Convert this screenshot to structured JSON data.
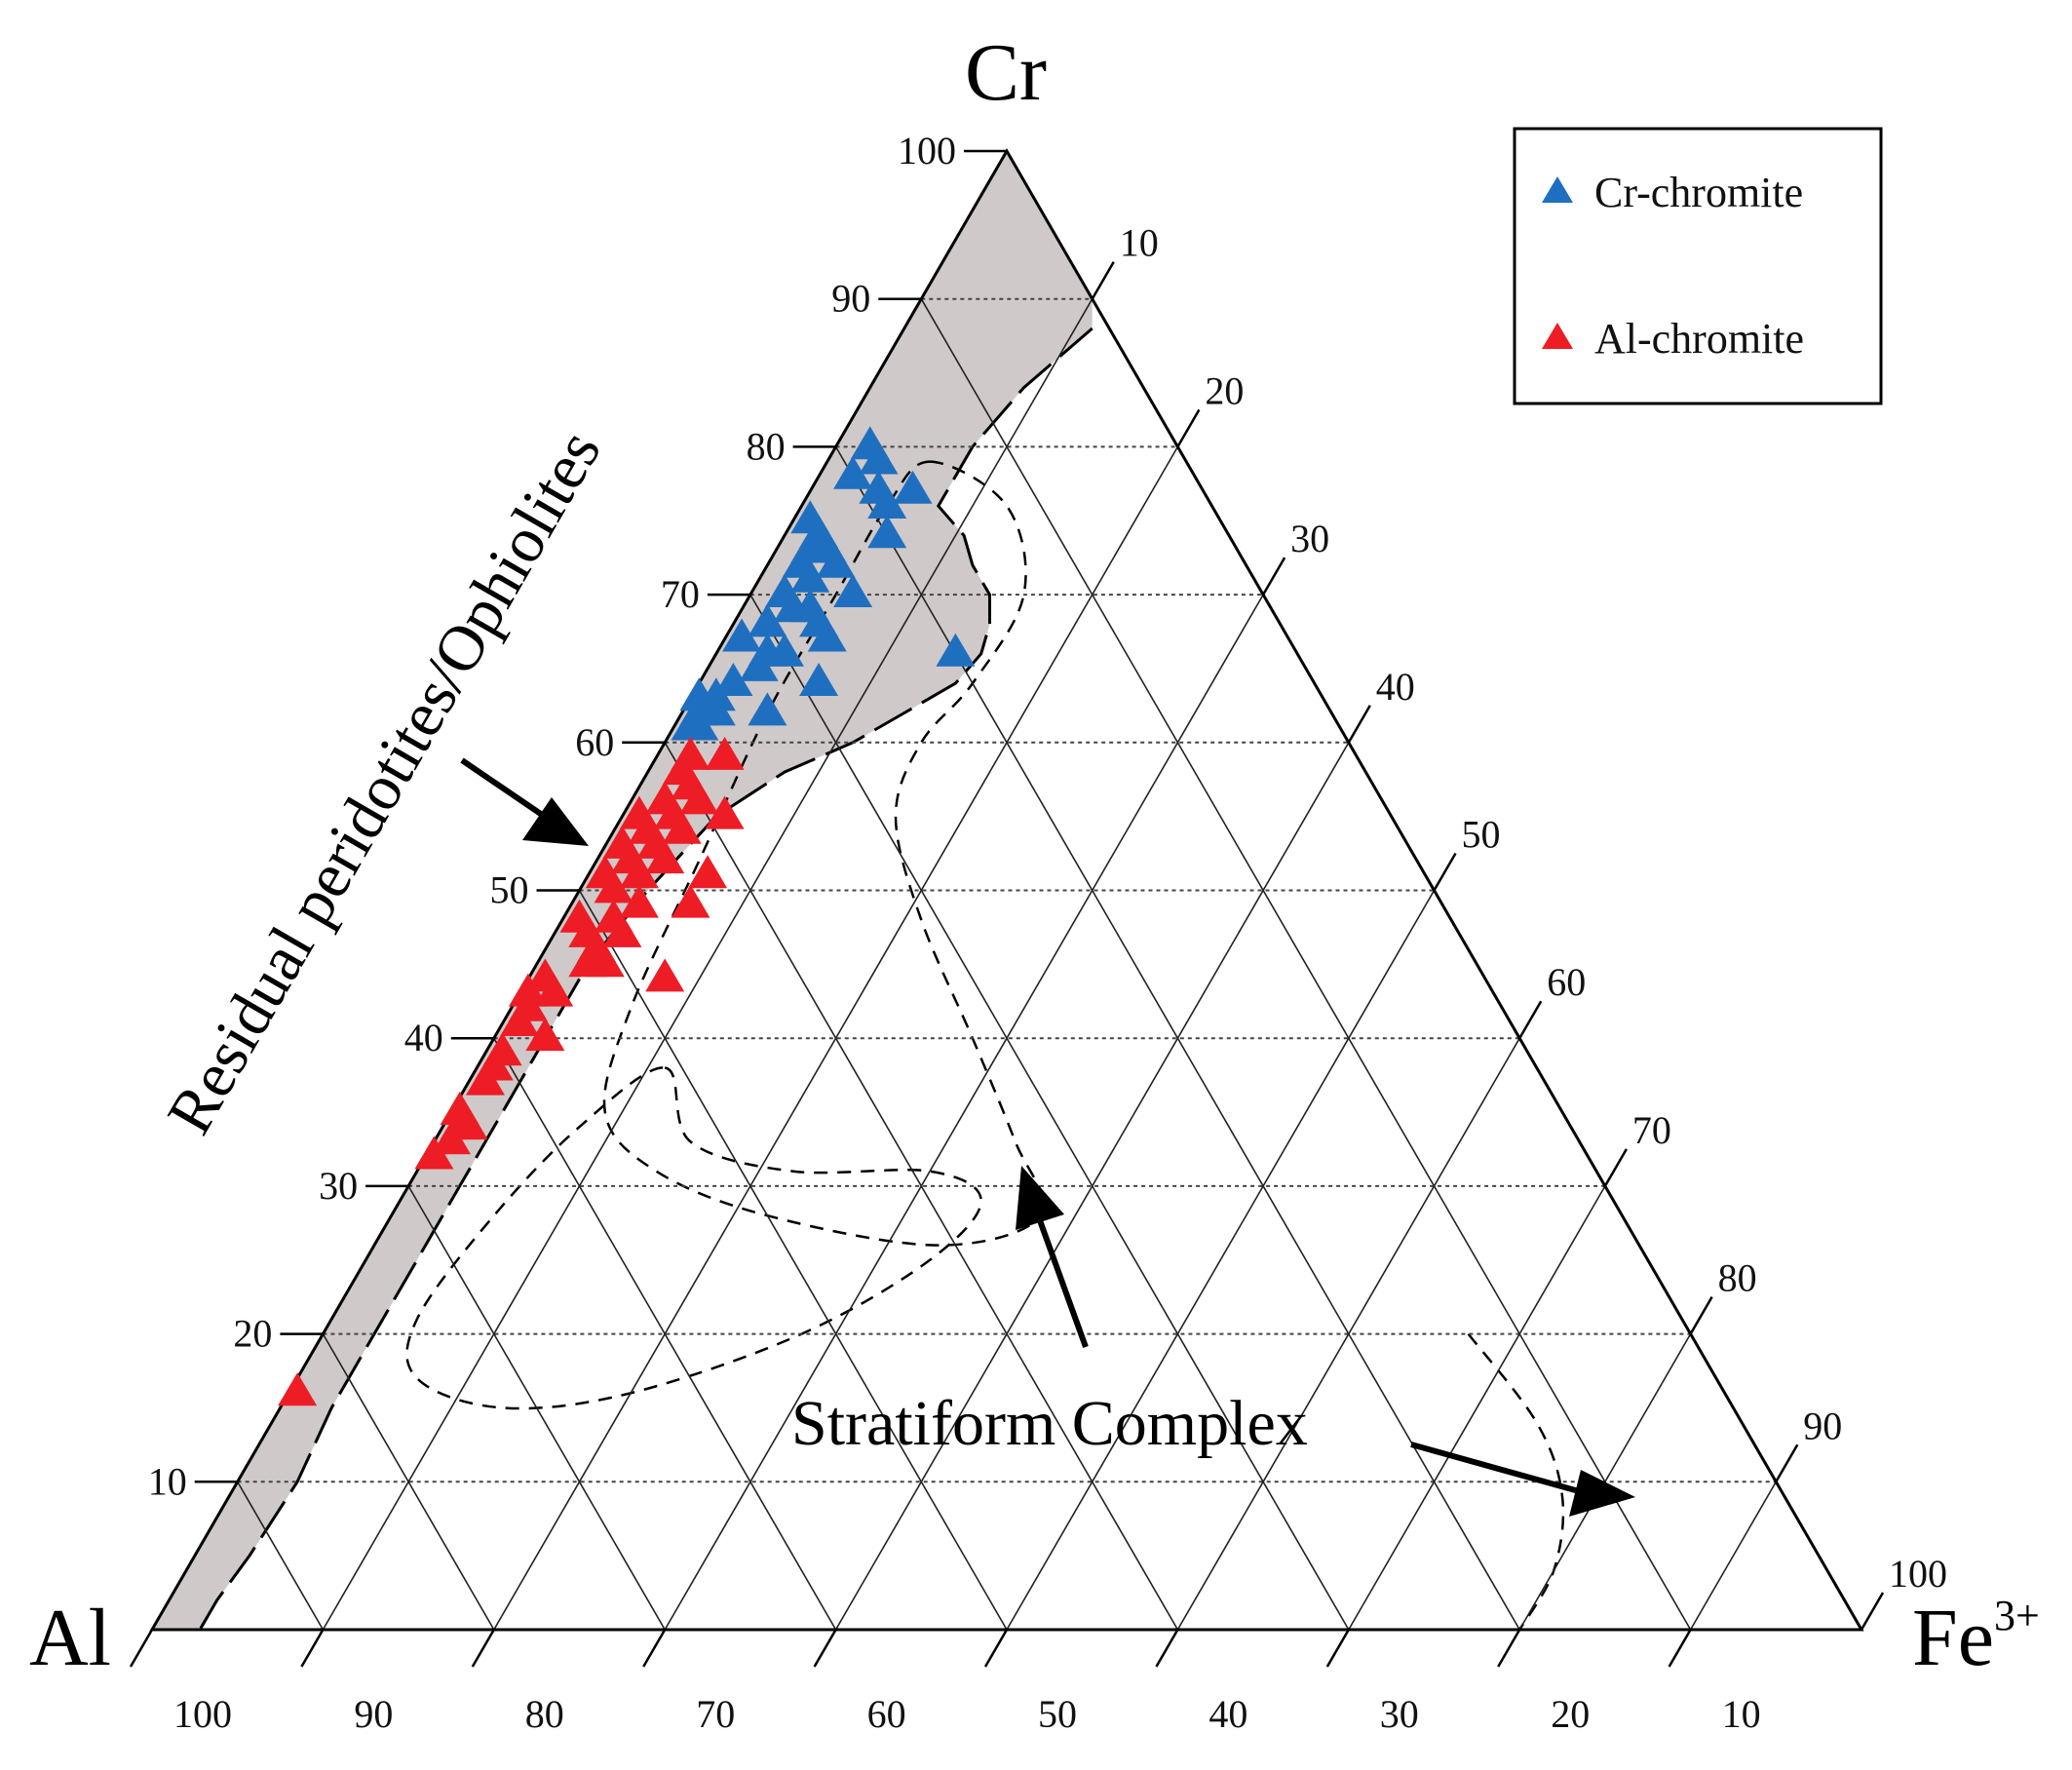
{
  "chart_data": {
    "type": "scatter",
    "diagram": "ternary",
    "title": "",
    "vertices": {
      "top": "Cr",
      "left": "Al",
      "right_main": "Fe",
      "right_sup": "3+"
    },
    "axis_ticks": {
      "cr": [
        "10",
        "20",
        "30",
        "40",
        "50",
        "60",
        "70",
        "80",
        "90",
        "100"
      ],
      "fe": [
        "10",
        "20",
        "30",
        "40",
        "50",
        "60",
        "70",
        "80",
        "90",
        "100"
      ],
      "al": [
        "100",
        "90",
        "80",
        "70",
        "60",
        "50",
        "40",
        "30",
        "20",
        "10"
      ]
    },
    "legend": {
      "placement": "top-right",
      "entries": [
        {
          "label": "Cr-chromite",
          "color": "#1f6fc0"
        },
        {
          "label": "Al-chromite",
          "color": "#ee1c25"
        }
      ]
    },
    "annotations": {
      "residual": "Residual peridotites/Ophiolites",
      "stratiform": "Stratiform Complex"
    },
    "colors": {
      "field_fill": "#cfc9c9",
      "line": "#000000"
    },
    "series": [
      {
        "name": "Cr-chromite",
        "points": [
          {
            "cr": 80,
            "fe": 2
          },
          {
            "cr": 79,
            "fe": 3
          },
          {
            "cr": 78,
            "fe": 2
          },
          {
            "cr": 77,
            "fe": 4
          },
          {
            "cr": 77,
            "fe": 6
          },
          {
            "cr": 76,
            "fe": 5
          },
          {
            "cr": 75,
            "fe": 1
          },
          {
            "cr": 74,
            "fe": 2
          },
          {
            "cr": 74,
            "fe": 6
          },
          {
            "cr": 73,
            "fe": 2
          },
          {
            "cr": 73,
            "fe": 3
          },
          {
            "cr": 72,
            "fe": 4
          },
          {
            "cr": 72,
            "fe": 2
          },
          {
            "cr": 71,
            "fe": 3
          },
          {
            "cr": 70,
            "fe": 2
          },
          {
            "cr": 70,
            "fe": 6
          },
          {
            "cr": 69,
            "fe": 3
          },
          {
            "cr": 69,
            "fe": 4
          },
          {
            "cr": 68,
            "fe": 2
          },
          {
            "cr": 68,
            "fe": 5
          },
          {
            "cr": 67,
            "fe": 1
          },
          {
            "cr": 67,
            "fe": 6
          },
          {
            "cr": 66,
            "fe": 3
          },
          {
            "cr": 66,
            "fe": 4
          },
          {
            "cr": 66,
            "fe": 14
          },
          {
            "cr": 65,
            "fe": 3
          },
          {
            "cr": 64,
            "fe": 2
          },
          {
            "cr": 64,
            "fe": 7
          },
          {
            "cr": 63,
            "fe": 0.5
          },
          {
            "cr": 63,
            "fe": 1.5
          },
          {
            "cr": 62,
            "fe": 1
          },
          {
            "cr": 62,
            "fe": 2
          },
          {
            "cr": 62,
            "fe": 5
          },
          {
            "cr": 61,
            "fe": 1
          },
          {
            "cr": 61,
            "fe": 1.5
          }
        ]
      },
      {
        "name": "Al-chromite",
        "points": [
          {
            "cr": 59,
            "fe": 2
          },
          {
            "cr": 59,
            "fe": 4
          },
          {
            "cr": 58,
            "fe": 2
          },
          {
            "cr": 57,
            "fe": 3
          },
          {
            "cr": 56,
            "fe": 2
          },
          {
            "cr": 56,
            "fe": 4
          },
          {
            "cr": 55,
            "fe": 1
          },
          {
            "cr": 55,
            "fe": 3
          },
          {
            "cr": 55,
            "fe": 6
          },
          {
            "cr": 54,
            "fe": 2
          },
          {
            "cr": 54,
            "fe": 4
          },
          {
            "cr": 53,
            "fe": 3
          },
          {
            "cr": 53,
            "fe": 1
          },
          {
            "cr": 52,
            "fe": 2
          },
          {
            "cr": 52,
            "fe": 4
          },
          {
            "cr": 51,
            "fe": 1
          },
          {
            "cr": 51,
            "fe": 3
          },
          {
            "cr": 51,
            "fe": 7
          },
          {
            "cr": 50,
            "fe": 2
          },
          {
            "cr": 49,
            "fe": 4
          },
          {
            "cr": 49,
            "fe": 7
          },
          {
            "cr": 48,
            "fe": 1
          },
          {
            "cr": 48,
            "fe": 3
          },
          {
            "cr": 47,
            "fe": 2
          },
          {
            "cr": 47,
            "fe": 4
          },
          {
            "cr": 46,
            "fe": 3
          },
          {
            "cr": 45,
            "fe": 3
          },
          {
            "cr": 45,
            "fe": 4
          },
          {
            "cr": 44,
            "fe": 8
          },
          {
            "cr": 44,
            "fe": 1
          },
          {
            "cr": 43,
            "fe": 0.5
          },
          {
            "cr": 43,
            "fe": 2
          },
          {
            "cr": 42,
            "fe": 1
          },
          {
            "cr": 41,
            "fe": 1
          },
          {
            "cr": 40,
            "fe": 3
          },
          {
            "cr": 39,
            "fe": 1
          },
          {
            "cr": 38,
            "fe": 1
          },
          {
            "cr": 37,
            "fe": 1
          },
          {
            "cr": 35,
            "fe": 0.5
          },
          {
            "cr": 34,
            "fe": 1
          },
          {
            "cr": 34,
            "fe": 1.5
          },
          {
            "cr": 33,
            "fe": 1
          },
          {
            "cr": 32,
            "fe": 0.5
          },
          {
            "cr": 16,
            "fe": 0.5
          }
        ]
      }
    ]
  }
}
